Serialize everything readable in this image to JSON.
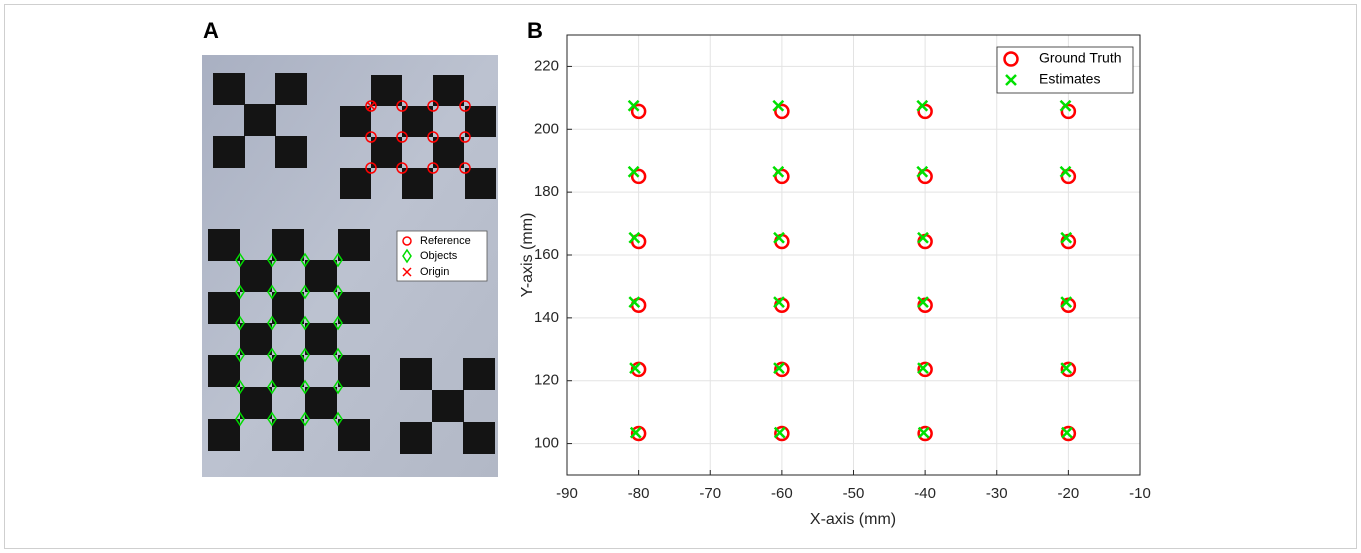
{
  "panel_labels": [
    "A",
    "B"
  ],
  "photo_legend": [
    "Reference",
    "Objects",
    "Origin"
  ],
  "chart_data": {
    "type": "scatter",
    "x_label": "X-axis (mm)",
    "y_label": "Y-axis (mm)",
    "xlim": [
      -90,
      -10
    ],
    "xticks": [
      -90,
      -80,
      -70,
      -60,
      -50,
      -40,
      -30,
      -20,
      -10
    ],
    "ylim": [
      90,
      230
    ],
    "yticks": [
      100,
      120,
      140,
      160,
      180,
      200,
      220
    ],
    "grid": true,
    "legend": "upper right",
    "series": [
      {
        "name": "Ground Truth",
        "color": "#ff0000",
        "marker": "circle",
        "x": [
          -80,
          -60,
          -40,
          -20,
          -80,
          -60,
          -40,
          -20,
          -80,
          -60,
          -40,
          -20,
          -80,
          -60,
          -40,
          -20,
          -80,
          -60,
          -40,
          -20,
          -80,
          -60,
          -40,
          -20
        ],
        "values": [
          103.2,
          103.2,
          103.2,
          103.2,
          123.6,
          123.6,
          123.6,
          123.6,
          144,
          144,
          144,
          144,
          164.3,
          164.3,
          164.3,
          164.3,
          185,
          185,
          185,
          185,
          205.7,
          205.7,
          205.7,
          205.7
        ]
      },
      {
        "name": "Estimates",
        "color": "#00e000",
        "marker": "x",
        "x": [
          -80.4,
          -60.3,
          -40.2,
          -20.2,
          -80.5,
          -60.4,
          -40.3,
          -20.3,
          -80.6,
          -60.4,
          -40.3,
          -20.3,
          -80.6,
          -60.4,
          -40.3,
          -20.3,
          -80.7,
          -60.5,
          -40.4,
          -20.4,
          -80.7,
          -60.5,
          -40.4,
          -20.4
        ],
        "values": [
          103.5,
          103.5,
          103.5,
          103.5,
          124,
          124,
          124,
          124,
          145,
          145,
          145,
          145,
          165.5,
          165.5,
          165.5,
          165.5,
          186.5,
          186.5,
          186.5,
          186.5,
          207.5,
          207.5,
          207.5,
          207.5
        ]
      }
    ]
  }
}
